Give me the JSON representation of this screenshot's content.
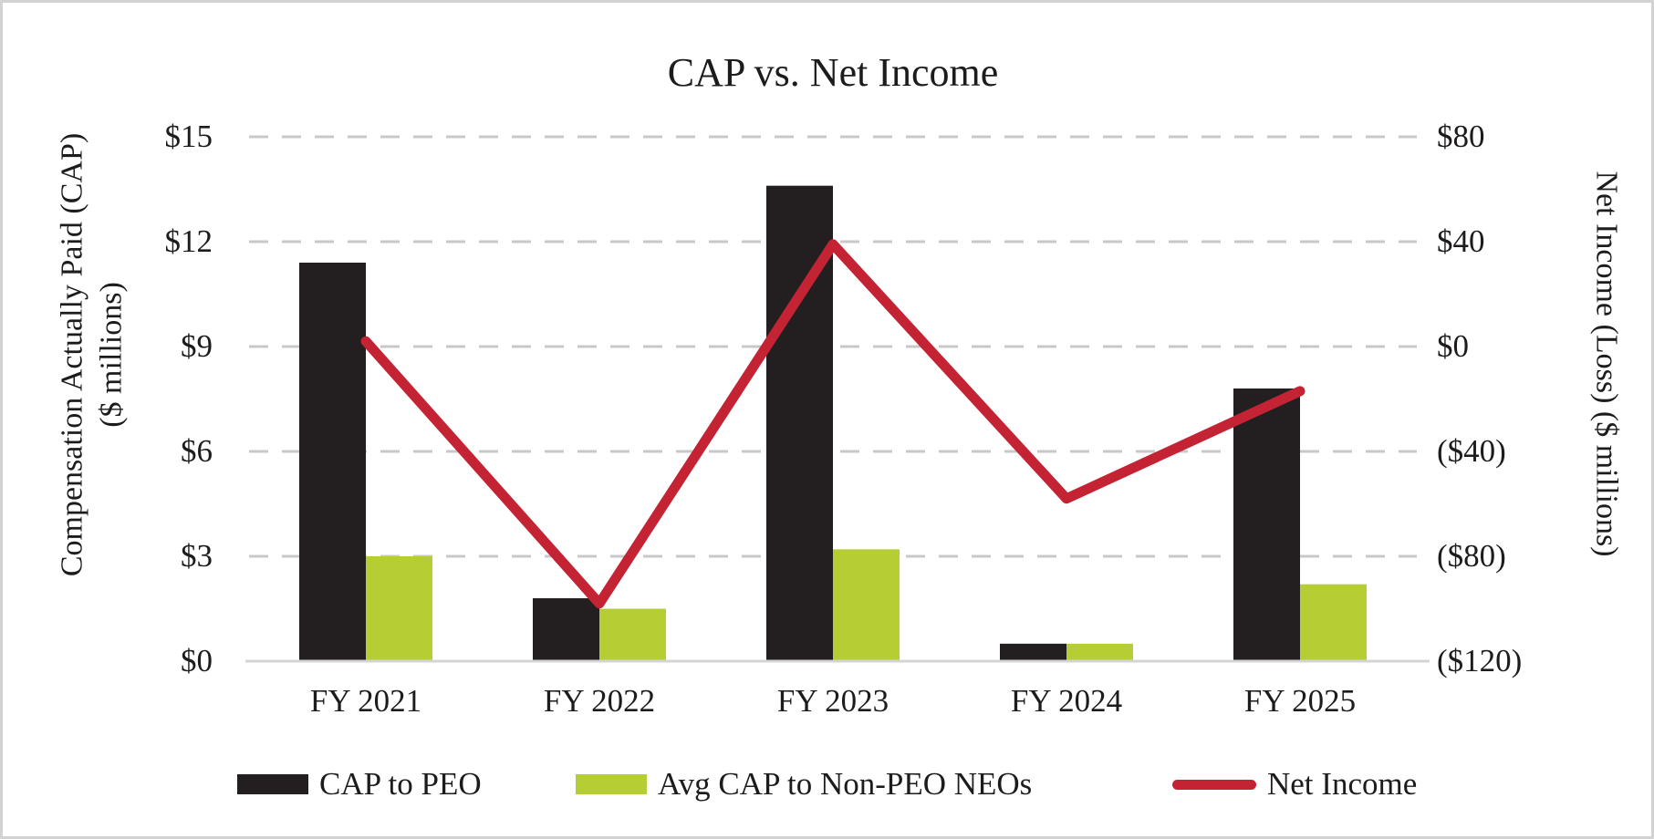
{
  "page": {
    "background": "#ffffff",
    "border_color": "#d2d2d2"
  },
  "chart_data": {
    "type": "bar+line",
    "title": "CAP vs. Net Income",
    "categories": [
      "FY 2021",
      "FY 2022",
      "FY 2023",
      "FY 2024",
      "FY 2025"
    ],
    "series": [
      {
        "name": "CAP to PEO",
        "type": "bar",
        "axis": "left",
        "color": "#231f20",
        "values": [
          11.4,
          1.8,
          13.6,
          0.5,
          7.8
        ]
      },
      {
        "name": "Avg CAP to Non-PEO NEOs",
        "type": "bar",
        "axis": "left",
        "color": "#b6ce34",
        "values": [
          3.0,
          1.5,
          3.2,
          0.5,
          2.2
        ]
      },
      {
        "name": "Net Income",
        "type": "line",
        "axis": "right",
        "color": "#c42334",
        "values": [
          2,
          -98,
          39,
          -58,
          -17
        ]
      }
    ],
    "left_axis": {
      "title_line1": "Compensation Actually Paid (CAP)",
      "title_line2": "($ millions)",
      "ticks": [
        "$15",
        "$12",
        "$9",
        "$6",
        "$3",
        "$0"
      ],
      "tick_values": [
        15,
        12,
        9,
        6,
        3,
        0
      ],
      "range": [
        0,
        15
      ]
    },
    "right_axis": {
      "title": "Net Income (Loss) ($ millions)",
      "ticks": [
        "$80",
        "$40",
        "$0",
        "($40)",
        "($80)",
        "($120)"
      ],
      "tick_values": [
        80,
        40,
        0,
        -40,
        -80,
        -120
      ],
      "range": [
        -120,
        80
      ]
    },
    "grid": {
      "style": "dashed",
      "color": "#c8c8c8",
      "axis_line_color": "#d4d4d4"
    },
    "legend_position": "bottom"
  }
}
